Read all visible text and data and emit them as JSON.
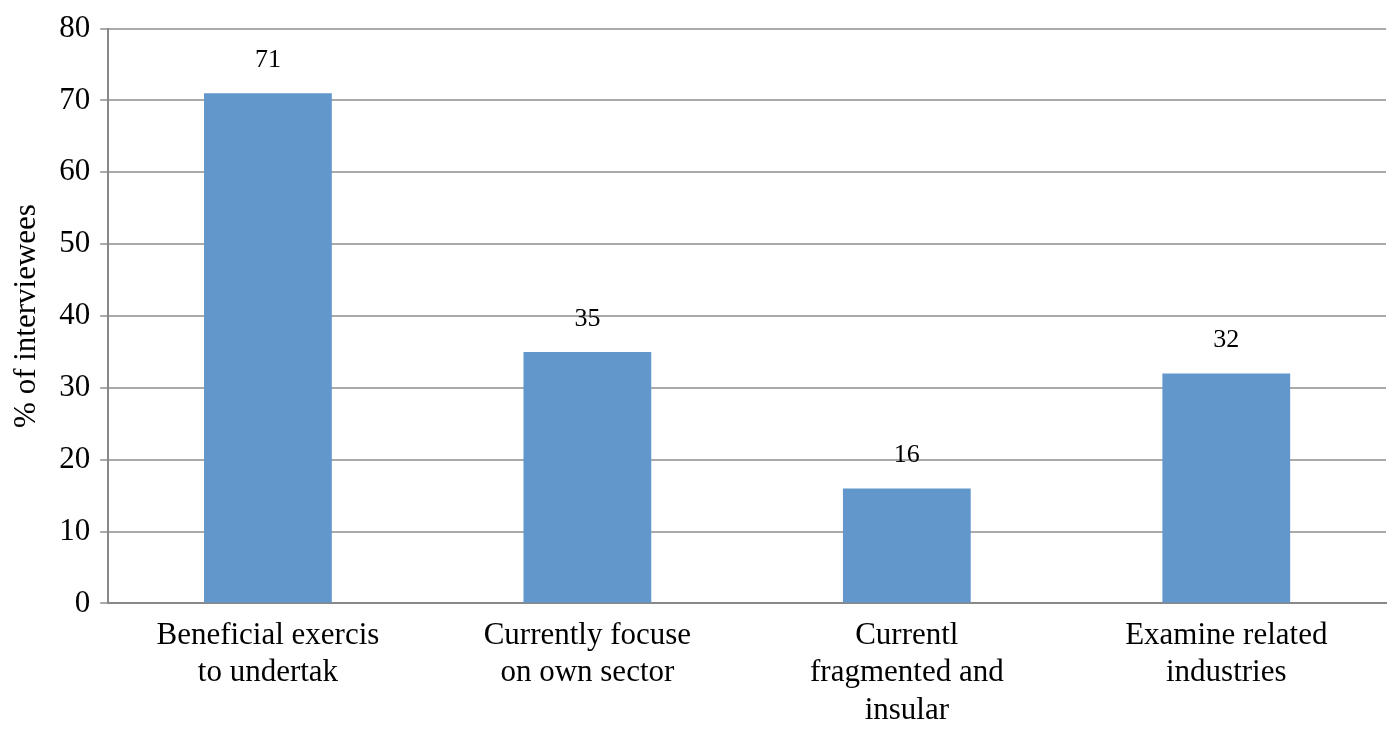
{
  "chart_data": {
    "type": "bar",
    "ylabel": "% of interviewees",
    "categories": [
      "Beneficial exercis\nto undertak",
      "Currently focuse\non own sector",
      "Currentl\nfragmented and\ninsular",
      "Examine related\nindustries"
    ],
    "values": [
      71,
      35,
      16,
      32
    ],
    "color": "#6197cb",
    "ylim": [
      0,
      80
    ],
    "yticks": [
      0,
      10,
      20,
      30,
      40,
      50,
      60,
      70,
      80
    ],
    "grid": "y",
    "data_labels": true,
    "legend": false
  }
}
